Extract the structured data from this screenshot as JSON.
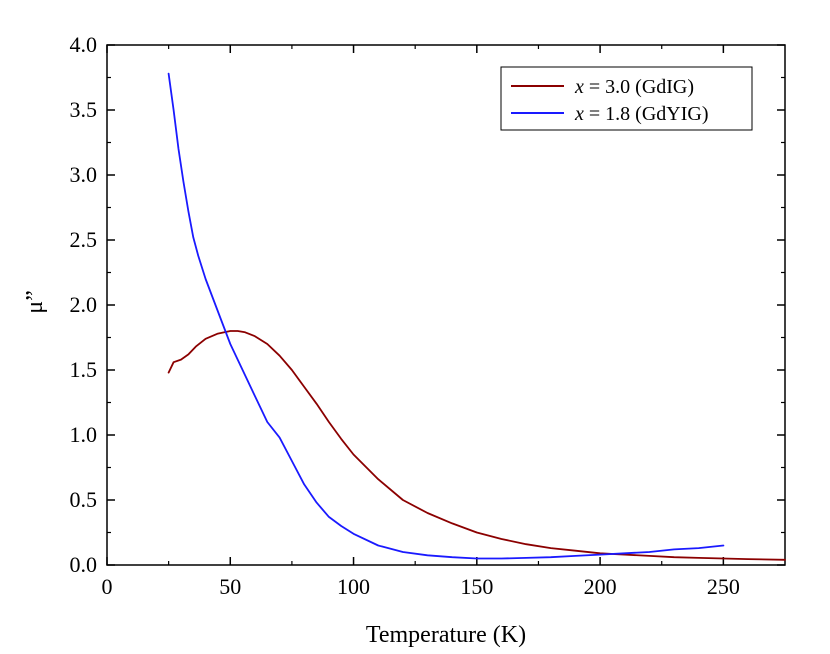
{
  "chart_data": {
    "type": "line",
    "title": "",
    "xlabel": "Temperature (K)",
    "ylabel": "μ”",
    "xlim": [
      0,
      275
    ],
    "ylim": [
      0.0,
      4.0
    ],
    "x_ticks": [
      0,
      50,
      100,
      150,
      200,
      250
    ],
    "x_tick_labels": [
      "0",
      "50",
      "100",
      "150",
      "200",
      "250"
    ],
    "y_ticks": [
      0.0,
      0.5,
      1.0,
      1.5,
      2.0,
      2.5,
      3.0,
      3.5,
      4.0
    ],
    "y_tick_labels": [
      "0.0",
      "0.5",
      "1.0",
      "1.5",
      "2.0",
      "2.5",
      "3.0",
      "3.5",
      "4.0"
    ],
    "grid": false,
    "legend_position": "top-right",
    "series": [
      {
        "name": "x = 3.0 (GdIG)",
        "legend_var": "x",
        "legend_rest": " = 3.0 (GdIG)",
        "color": "#8b0000",
        "x": [
          25,
          27,
          30,
          33,
          36,
          40,
          45,
          50,
          53,
          56,
          60,
          65,
          70,
          75,
          80,
          85,
          90,
          95,
          100,
          110,
          120,
          130,
          140,
          150,
          160,
          170,
          180,
          190,
          200,
          210,
          220,
          230,
          240,
          250,
          260,
          275
        ],
        "y": [
          1.48,
          1.56,
          1.58,
          1.62,
          1.68,
          1.74,
          1.78,
          1.8,
          1.8,
          1.79,
          1.76,
          1.7,
          1.61,
          1.5,
          1.37,
          1.24,
          1.1,
          0.97,
          0.85,
          0.66,
          0.5,
          0.4,
          0.32,
          0.25,
          0.2,
          0.16,
          0.13,
          0.11,
          0.09,
          0.08,
          0.07,
          0.06,
          0.055,
          0.05,
          0.045,
          0.04
        ]
      },
      {
        "name": "x = 1.8 (GdYIG)",
        "legend_var": "x",
        "legend_rest": " = 1.8 (GdYIG)",
        "color": "#1a1aff",
        "x": [
          25,
          27,
          29,
          31,
          33,
          35,
          37,
          40,
          43,
          46,
          50,
          55,
          60,
          65,
          70,
          75,
          80,
          85,
          90,
          95,
          100,
          110,
          120,
          130,
          140,
          150,
          160,
          170,
          180,
          190,
          200,
          210,
          220,
          230,
          240,
          250
        ],
        "y": [
          3.78,
          3.5,
          3.2,
          2.95,
          2.72,
          2.52,
          2.38,
          2.2,
          2.05,
          1.9,
          1.7,
          1.5,
          1.3,
          1.1,
          0.98,
          0.8,
          0.62,
          0.48,
          0.37,
          0.3,
          0.24,
          0.15,
          0.1,
          0.075,
          0.06,
          0.05,
          0.05,
          0.055,
          0.06,
          0.07,
          0.08,
          0.09,
          0.1,
          0.12,
          0.13,
          0.15
        ]
      }
    ]
  }
}
